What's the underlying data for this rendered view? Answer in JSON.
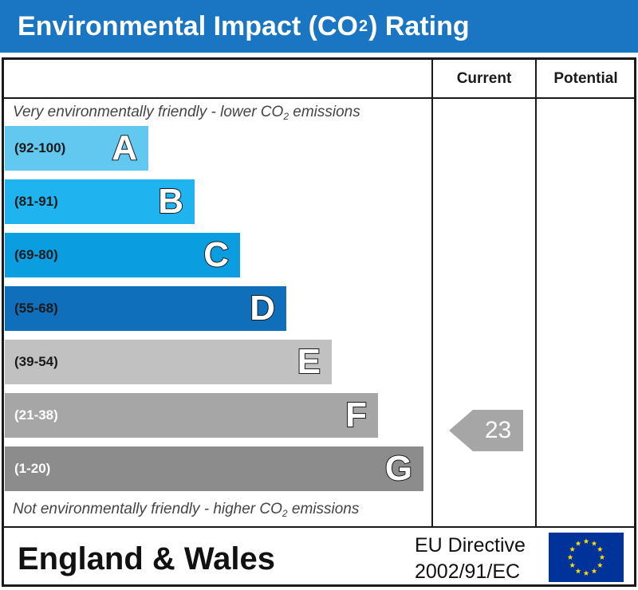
{
  "title": "Environmental Impact (CO",
  "title_sub": "2",
  "title_suffix": ") Rating",
  "columns": {
    "current": "Current",
    "potential": "Potential"
  },
  "top_note": {
    "text": "Very environmentally friendly - lower CO",
    "sub": "2",
    "suffix": " emissions"
  },
  "bottom_note": {
    "text": "Not environmentally friendly - higher CO",
    "sub": "2",
    "suffix": " emissions"
  },
  "chart_data": {
    "type": "bar",
    "categories": [
      "A",
      "B",
      "C",
      "D",
      "E",
      "F",
      "G"
    ],
    "bands": [
      {
        "letter": "A",
        "range": "(92-100)",
        "color": "#63c8ef",
        "range_color": "#1a1a1a"
      },
      {
        "letter": "B",
        "range": "(81-91)",
        "color": "#1fb4ef",
        "range_color": "#1a1a1a"
      },
      {
        "letter": "C",
        "range": "(69-80)",
        "color": "#0a9ee0",
        "range_color": "#1a1a1a"
      },
      {
        "letter": "D",
        "range": "(55-68)",
        "color": "#0f6fbb",
        "range_color": "#1a1a1a"
      },
      {
        "letter": "E",
        "range": "(39-54)",
        "color": "#c1c1c1",
        "range_color": "#1a1a1a"
      },
      {
        "letter": "F",
        "range": "(21-38)",
        "color": "#a6a6a6",
        "range_color": "#ffffff"
      },
      {
        "letter": "G",
        "range": "(1-20)",
        "color": "#8c8c8c",
        "range_color": "#ffffff"
      }
    ],
    "current_rating": {
      "value": "23",
      "band": "F",
      "color": "#a6a6a6"
    },
    "potential_rating": null
  },
  "footer": {
    "region": "England & Wales",
    "directive_line1": "EU Directive",
    "directive_line2": "2002/91/EC",
    "flag_icon": "eu-flag-icon",
    "flag_color": "#003399",
    "star_color": "#ffdd00"
  }
}
